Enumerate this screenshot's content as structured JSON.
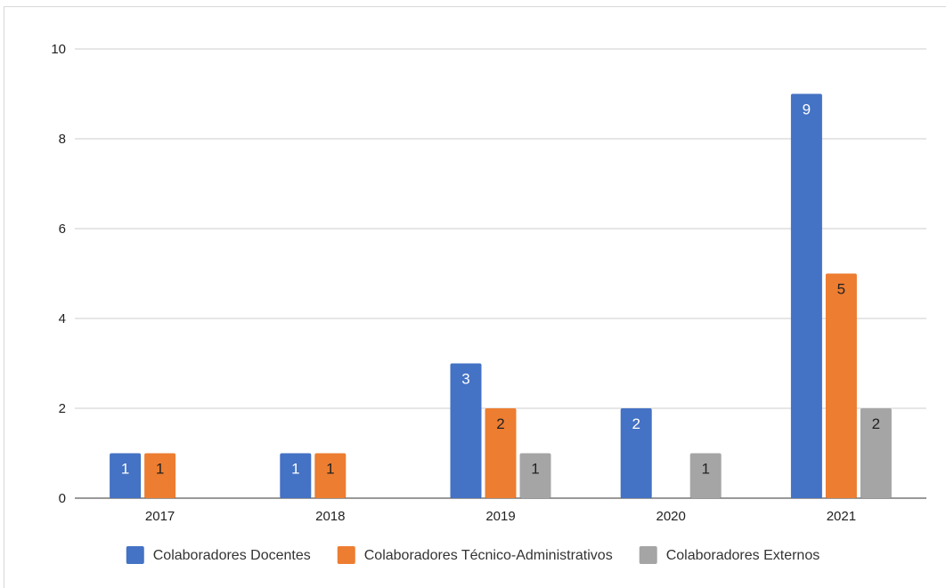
{
  "chart_data": {
    "type": "bar",
    "title": "",
    "xlabel": "",
    "ylabel": "",
    "categories": [
      "2017",
      "2018",
      "2019",
      "2020",
      "2021"
    ],
    "series": [
      {
        "name": "Colaboradores Docentes",
        "color": "#4472c4",
        "values": [
          1,
          1,
          3,
          2,
          9
        ]
      },
      {
        "name": "Colaboradores Técnico-Administrativos",
        "color": "#ed7d31",
        "values": [
          1,
          1,
          2,
          null,
          5
        ]
      },
      {
        "name": "Colaboradores Externos",
        "color": "#a5a5a5",
        "values": [
          null,
          null,
          1,
          1,
          2
        ]
      }
    ],
    "ylim": [
      0,
      10
    ],
    "yticks": [
      0,
      2,
      4,
      6,
      8,
      10
    ],
    "ytick_labels": [
      "0",
      "2",
      "4",
      "6",
      "8",
      "10"
    ],
    "grid": true,
    "data_labels": true,
    "legend_position": "bottom"
  }
}
